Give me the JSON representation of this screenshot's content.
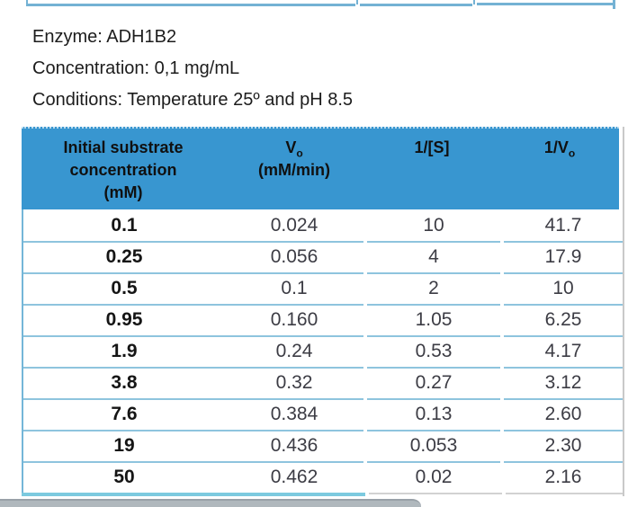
{
  "info_block": {
    "enzyme": "Enzyme: ADH1B2",
    "concentration": "Concentration: 0,1 mg/mL",
    "conditions": "Conditions: Temperature 25º and pH 8.5"
  },
  "table": {
    "header": {
      "col1_line1": "Initial substrate",
      "col1_line2": "concentration",
      "col1_line3": "(mM)",
      "col2_main": "V",
      "col2_sub": "o",
      "col2_line2": "(mM/min)",
      "col3": "1/[S]",
      "col4_main": "1/V",
      "col4_sub": "o"
    },
    "rows": [
      [
        "0.1",
        "0.024",
        "10",
        "41.7"
      ],
      [
        "0.25",
        "0.056",
        "4",
        "17.9"
      ],
      [
        "0.5",
        "0.1",
        "2",
        "10"
      ],
      [
        "0.95",
        "0.160",
        "1.05",
        "6.25"
      ],
      [
        "1.9",
        "0.24",
        "0.53",
        "4.17"
      ],
      [
        "3.8",
        "0.32",
        "0.27",
        "3.12"
      ],
      [
        "7.6",
        "0.384",
        "0.13",
        "2.60"
      ],
      [
        "19",
        "0.436",
        "0.053",
        "2.30"
      ],
      [
        "50",
        "0.462",
        "0.02",
        "2.16"
      ]
    ]
  },
  "colors": {
    "header_bg": "#3896d0",
    "header_text": "#101010",
    "info_text": "#1c1c1c",
    "data_text": "#3c3c44",
    "bold_text": "#151515",
    "row_border": "#8ec4de",
    "left_border": "#74b6d8",
    "right_border": "#c9c9c9",
    "bottom_cyan": "#7ccadf",
    "bottom_gray": "#d2d2d2",
    "fragment_border": "#74b2d4",
    "bar_fill": "#b0b8bd",
    "bar_edge": "#99a1a8"
  }
}
